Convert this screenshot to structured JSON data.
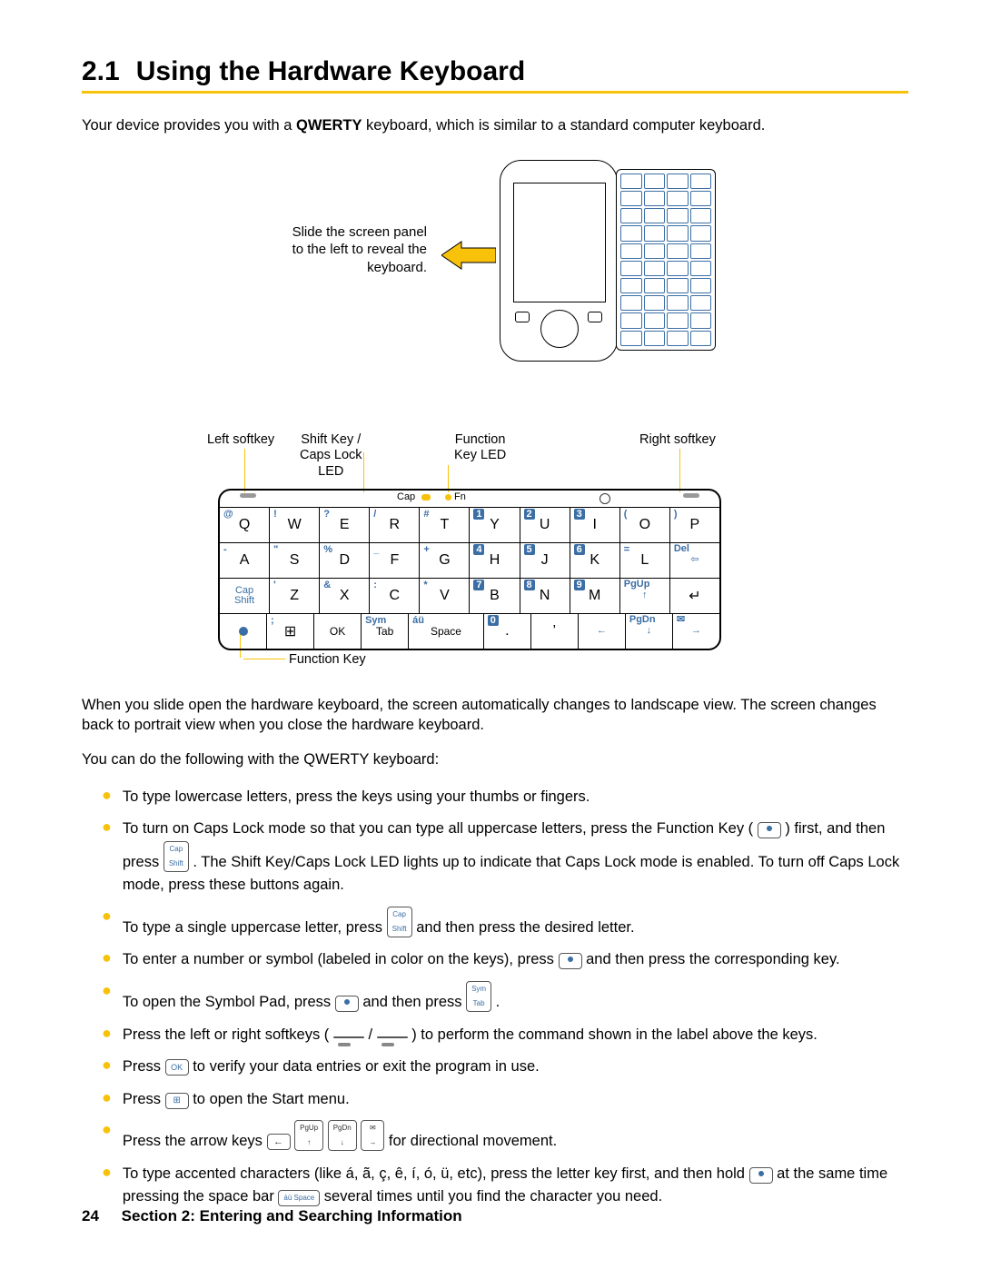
{
  "title_num": "2.1",
  "title_text": "Using the Hardware Keyboard",
  "intro_pre": "Your device provides you with a ",
  "intro_bold": "QWERTY",
  "intro_post": " keyboard, which is similar to a standard computer keyboard.",
  "slide_text": "Slide the screen panel to the left to reveal the keyboard.",
  "labels": {
    "left_softkey": "Left softkey",
    "shift": "Shift Key /\nCaps Lock\nLED",
    "fn_led": "Function\nKey LED",
    "right_softkey": "Right softkey",
    "fn_key": "Function Key",
    "cap": "Cap",
    "fn": "Fn"
  },
  "keyboard": {
    "row1": [
      {
        "alt": "@",
        "altClass": "",
        "main": "Q"
      },
      {
        "alt": "!",
        "altClass": "",
        "main": "W"
      },
      {
        "alt": "?",
        "altClass": "",
        "main": "E"
      },
      {
        "alt": "/",
        "altClass": "",
        "main": "R"
      },
      {
        "alt": "#",
        "altClass": "",
        "main": "T"
      },
      {
        "alt": "1",
        "altClass": "sq",
        "main": "Y"
      },
      {
        "alt": "2",
        "altClass": "sq",
        "main": "U"
      },
      {
        "alt": "3",
        "altClass": "sq",
        "main": "I"
      },
      {
        "alt": "(",
        "altClass": "",
        "main": "O"
      },
      {
        "alt": ")",
        "altClass": "",
        "main": "P"
      }
    ],
    "row2": [
      {
        "alt": "-",
        "altClass": "",
        "main": "A"
      },
      {
        "alt": "\"",
        "altClass": "",
        "main": "S"
      },
      {
        "alt": "%",
        "altClass": "",
        "main": "D"
      },
      {
        "alt": "_",
        "altClass": "",
        "main": "F"
      },
      {
        "alt": "+",
        "altClass": "",
        "main": "G"
      },
      {
        "alt": "4",
        "altClass": "sq",
        "main": "H"
      },
      {
        "alt": "5",
        "altClass": "sq",
        "main": "J"
      },
      {
        "alt": "6",
        "altClass": "sq",
        "main": "K"
      },
      {
        "alt": "=",
        "altClass": "",
        "main": "L"
      },
      {
        "alt": "Del",
        "altClass": "",
        "main": "⇦",
        "blue": true
      }
    ],
    "row3": [
      {
        "main": "Cap\nShift",
        "blue": true
      },
      {
        "alt": "'",
        "altClass": "",
        "main": "Z"
      },
      {
        "alt": "&",
        "altClass": "",
        "main": "X"
      },
      {
        "alt": ":",
        "altClass": "",
        "main": "C"
      },
      {
        "alt": "*",
        "altClass": "",
        "main": "V"
      },
      {
        "alt": "7",
        "altClass": "sq",
        "main": "B"
      },
      {
        "alt": "8",
        "altClass": "sq",
        "main": "N"
      },
      {
        "alt": "9",
        "altClass": "sq",
        "main": "M"
      },
      {
        "alt": "PgUp",
        "altClass": "",
        "main": "↑",
        "blue": true
      },
      {
        "main": "↵"
      }
    ],
    "row4": [
      {
        "main": "●",
        "dot": true
      },
      {
        "alt": ";",
        "altClass": "",
        "main": "⊞"
      },
      {
        "main": "OK",
        "small": true
      },
      {
        "alt": "Sym",
        "altClass": "",
        "main": "Tab",
        "small": true
      },
      {
        "alt": "áü",
        "altClass": "",
        "main": "Space",
        "small": true,
        "wide": true
      },
      {
        "alt": "0",
        "altClass": "sq",
        "main": "."
      },
      {
        "main": "’"
      },
      {
        "main": "←",
        "blue": true
      },
      {
        "alt": "PgDn",
        "altClass": "",
        "main": "↓",
        "blue": true
      },
      {
        "alt": "✉",
        "altClass": "",
        "main": "→",
        "blue": true
      }
    ]
  },
  "para1": "When you slide open the hardware keyboard, the screen automatically changes to landscape view. The screen changes back to portrait view when you close the hardware keyboard.",
  "para2": "You can do the following with the QWERTY keyboard:",
  "list": {
    "i0": "To type lowercase letters, press the keys using your thumbs or fingers.",
    "i1a": "To turn on Caps Lock mode so that you can type all uppercase letters, press the Function Key ( ",
    "i1b": " ) first, and then press ",
    "i1c": " . The Shift Key/Caps Lock LED lights up to indicate that Caps Lock mode is enabled. To turn off Caps Lock mode, press these buttons again.",
    "i2a": "To type a single uppercase letter, press ",
    "i2b": " and then press the desired letter.",
    "i3a": "To enter a number or symbol (labeled in color on the keys), press ",
    "i3b": " and then press the corresponding key.",
    "i4a": "To open the Symbol Pad, press ",
    "i4b": " and then press ",
    "i4c": " .",
    "i5a": "Press the left or right softkeys ( ",
    "i5b": " / ",
    "i5c": " ) to perform the command shown in the label above the keys.",
    "i6a": "Press ",
    "i6b": " to verify your data entries or exit the program in use.",
    "i7a": "Press ",
    "i7b": " to open the Start menu.",
    "i8a": "Press the arrow keys ",
    "i8b": " for directional movement.",
    "i9a": "To type accented characters (like á, ã, ç, ê, í, ó, ü, etc), press the letter key first, and then hold ",
    "i9b": " at the same time pressing the space bar ",
    "i9c": " several times until you find the character you need."
  },
  "inline_keys": {
    "capshift": "Cap\nShift",
    "symtab": "Sym\nTab",
    "ok": "OK",
    "win": "⊞",
    "left": "←",
    "pgup": "PgUp\n↑",
    "pgdn": "PgDn\n↓",
    "mail": "✉\n→",
    "space": "áü Space"
  },
  "footer": {
    "page": "24",
    "section": "Section 2: Entering and Searching Information"
  },
  "colors": {
    "accent": "#f9c20a",
    "blue": "#3b6ea5"
  }
}
